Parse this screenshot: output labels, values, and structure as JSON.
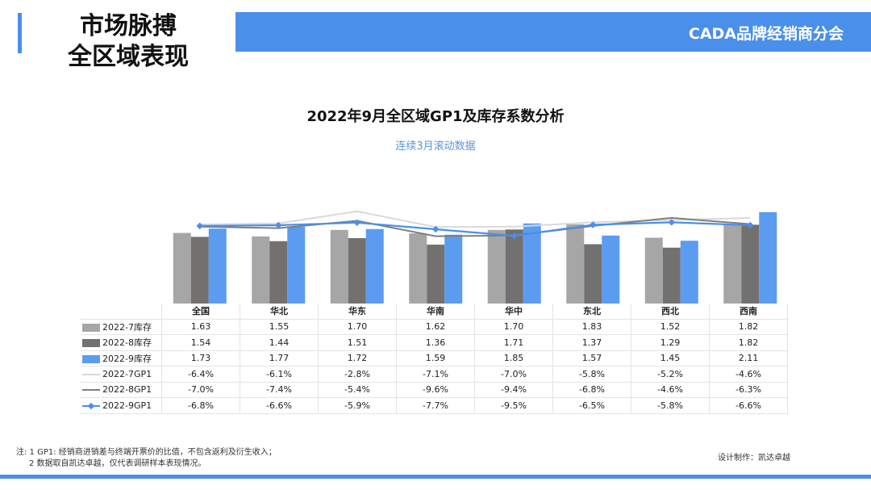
{
  "header": {
    "title_line1": "市场脉搏",
    "title_line2": "全区域表现",
    "org": "CADA品牌经销商分会"
  },
  "footer": {
    "note_line1": "注: 1 GP1: 经销商进销差与终端开票价的比值，不包含返利及衍生收入；",
    "note_line2": "2 数据取自凯达卓越，仅代表调研样本表现情况。",
    "credit": "设计制作：凯达卓越"
  },
  "colors": {
    "accent": "#4a8fea",
    "bar_jul": "#a6a6a6",
    "bar_aug": "#737070",
    "bar_sep": "#5b9cf0",
    "line_jul": "#d9d9d9",
    "line_aug": "#7f7f7f",
    "line_sep": "#4a8fea"
  },
  "chart_data": {
    "type": "bar",
    "title": "2022年9月全区域GP1及库存系数分析",
    "subtitle": "连续3月滚动数据",
    "categories": [
      "全国",
      "华北",
      "华东",
      "华南",
      "华中",
      "东北",
      "西北",
      "西南"
    ],
    "bar_series": [
      {
        "name": "2022-7库存",
        "values": [
          1.63,
          1.55,
          1.7,
          1.62,
          1.7,
          1.83,
          1.52,
          1.82
        ],
        "labels": [
          "1.63",
          "1.55",
          "1.70",
          "1.62",
          "1.70",
          "1.83",
          "1.52",
          "1.82"
        ],
        "color": "#a6a6a6"
      },
      {
        "name": "2022-8库存",
        "values": [
          1.54,
          1.44,
          1.51,
          1.36,
          1.71,
          1.37,
          1.29,
          1.82
        ],
        "labels": [
          "1.54",
          "1.44",
          "1.51",
          "1.36",
          "1.71",
          "1.37",
          "1.29",
          "1.82"
        ],
        "color": "#737070"
      },
      {
        "name": "2022-9库存",
        "values": [
          1.73,
          1.77,
          1.72,
          1.59,
          1.85,
          1.57,
          1.45,
          2.11
        ],
        "labels": [
          "1.73",
          "1.77",
          "1.72",
          "1.59",
          "1.85",
          "1.57",
          "1.45",
          "2.11"
        ],
        "color": "#5b9cf0"
      }
    ],
    "line_series": [
      {
        "name": "2022-7GP1",
        "values": [
          -6.4,
          -6.1,
          -2.8,
          -7.1,
          -7.0,
          -5.8,
          -5.2,
          -4.6
        ],
        "labels": [
          "-6.4%",
          "-6.1%",
          "-2.8%",
          "-7.1%",
          "-7.0%",
          "-5.8%",
          "-5.2%",
          "-4.6%"
        ],
        "color": "#d9d9d9",
        "marker": false
      },
      {
        "name": "2022-8GP1",
        "values": [
          -7.0,
          -7.4,
          -5.4,
          -9.6,
          -9.4,
          -6.8,
          -4.6,
          -6.3
        ],
        "labels": [
          "-7.0%",
          "-7.4%",
          "-5.4%",
          "-9.6%",
          "-9.4%",
          "-6.8%",
          "-4.6%",
          "-6.3%"
        ],
        "color": "#7f7f7f",
        "marker": false
      },
      {
        "name": "2022-9GP1",
        "values": [
          -6.8,
          -6.6,
          -5.9,
          -7.7,
          -9.5,
          -6.5,
          -5.8,
          -6.6
        ],
        "labels": [
          "-6.8%",
          "-6.6%",
          "-5.9%",
          "-7.7%",
          "-9.5%",
          "-6.5%",
          "-5.8%",
          "-6.6%"
        ],
        "color": "#4a8fea",
        "marker": true
      }
    ],
    "bar_axis_range": [
      0,
      2.2
    ],
    "line_axis_range": [
      -28,
      2
    ],
    "grid": false,
    "legend": "data-table"
  }
}
